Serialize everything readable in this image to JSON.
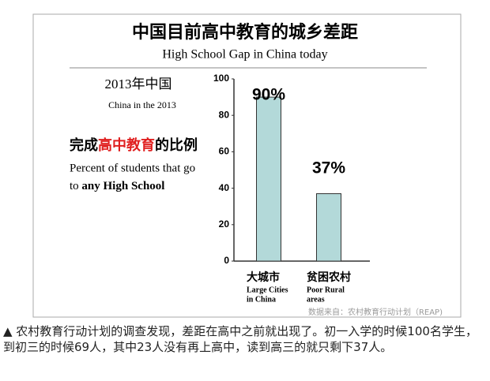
{
  "chart_data": {
    "type": "bar",
    "title": "中国目前高中教育的城乡差距",
    "subtitle": "High School Gap in China today",
    "left_title": "2013年中国",
    "left_subtitle": "China in the 2013",
    "measure_parts": [
      "完成",
      "高中教育",
      "的比例"
    ],
    "measure_en_line1": "Percent of students that go",
    "measure_en_line2_parts": [
      "to ",
      "any High School"
    ],
    "categories": [
      "大城市",
      "贫困农村"
    ],
    "categories_en": [
      [
        "Large Cities",
        "in China"
      ],
      [
        "Poor Rural",
        "areas"
      ]
    ],
    "values": [
      90,
      37
    ],
    "value_labels": [
      "90%",
      "37%"
    ],
    "color": "#b3d9d9",
    "ylim": [
      0,
      100
    ],
    "yticks": [
      0,
      20,
      40,
      60,
      80,
      100
    ],
    "source": "数据来自：农村教育行动计划（REAP)"
  },
  "caption": "▲ 农村教育行动计划的调查发现，差距在高中之前就出现了。初一入学的时候100名学生，到初三的时候69人，其中23人没有再上高中，读到高三的就只剩下37人。"
}
